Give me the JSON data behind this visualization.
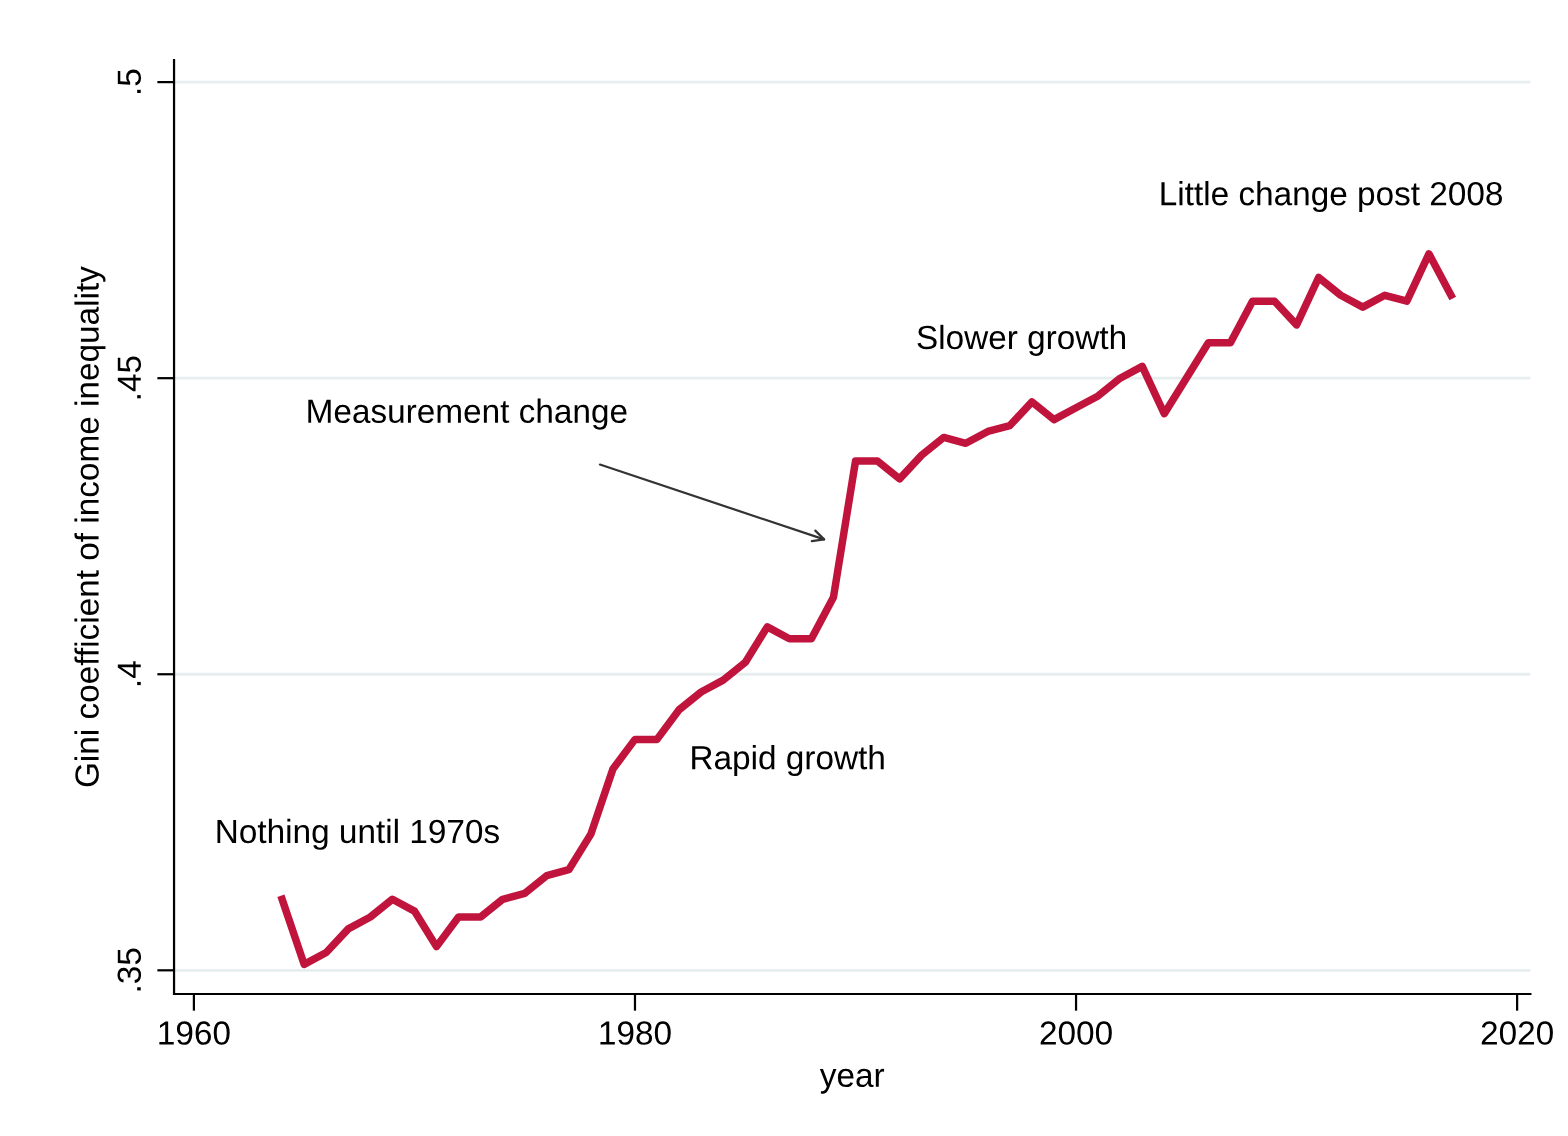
{
  "chart_data": {
    "type": "line",
    "xlabel": "year",
    "ylabel": "Gini coefficient of income inequality",
    "x": [
      1964,
      1965,
      1966,
      1967,
      1968,
      1969,
      1970,
      1971,
      1972,
      1973,
      1974,
      1975,
      1976,
      1977,
      1978,
      1979,
      1980,
      1981,
      1982,
      1983,
      1984,
      1985,
      1986,
      1987,
      1988,
      1989,
      1990,
      1991,
      1992,
      1993,
      1994,
      1995,
      1996,
      1997,
      1998,
      1999,
      2000,
      2001,
      2002,
      2003,
      2004,
      2005,
      2006,
      2007,
      2008,
      2009,
      2010,
      2011,
      2012,
      2013,
      2014,
      2015,
      2016,
      2017
    ],
    "series": [
      {
        "color": "#c0143c",
        "values": [
          0.362,
          0.351,
          0.353,
          0.357,
          0.359,
          0.362,
          0.36,
          0.354,
          0.359,
          0.359,
          0.362,
          0.363,
          0.366,
          0.367,
          0.373,
          0.384,
          0.389,
          0.389,
          0.394,
          0.397,
          0.399,
          0.402,
          0.408,
          0.406,
          0.406,
          0.413,
          0.436,
          0.436,
          0.433,
          0.437,
          0.44,
          0.439,
          0.441,
          0.442,
          0.446,
          0.443,
          0.445,
          0.447,
          0.45,
          0.452,
          0.444,
          0.45,
          0.456,
          0.456,
          0.463,
          0.463,
          0.459,
          0.467,
          0.464,
          0.462,
          0.464,
          0.463,
          0.471,
          0.464
        ]
      }
    ],
    "xlim": [
      1959.1,
      2020.6
    ],
    "xticks": [
      1960,
      1980,
      2000,
      2020
    ],
    "ylim": [
      0.346,
      0.5037
    ],
    "yticks": [
      {
        "value": 0.35,
        "label": ".35"
      },
      {
        "value": 0.4,
        "label": ".4"
      },
      {
        "value": 0.45,
        "label": ".45"
      },
      {
        "value": 0.5,
        "label": ".5"
      }
    ],
    "grid": "y",
    "marker": "none",
    "line_style": "solid",
    "legend": false,
    "annotations": [
      "Nothing until 1970s",
      "Rapid growth",
      "Measurement change",
      "Slower growth",
      "Little change post 2008"
    ]
  }
}
